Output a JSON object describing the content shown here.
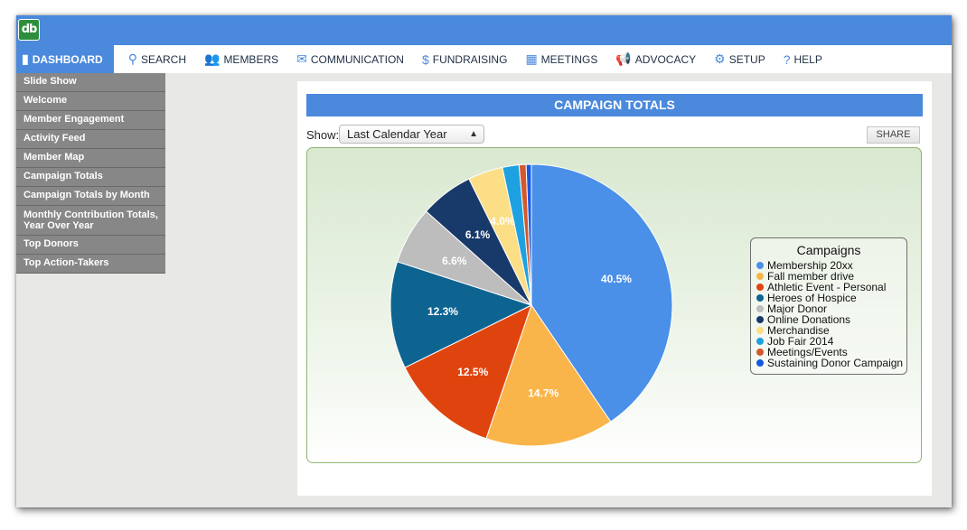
{
  "app": {
    "logo_text": "db"
  },
  "nav": [
    {
      "label": "DASHBOARD",
      "icon": "bar-chart-icon",
      "glyph": "▮",
      "active": true
    },
    {
      "label": "SEARCH",
      "icon": "search-icon",
      "glyph": "⚲",
      "active": false
    },
    {
      "label": "MEMBERS",
      "icon": "members-icon",
      "glyph": "👥",
      "active": false
    },
    {
      "label": "COMMUNICATION",
      "icon": "envelope-icon",
      "glyph": "✉",
      "active": false
    },
    {
      "label": "FUNDRAISING",
      "icon": "dollar-icon",
      "glyph": "$",
      "active": false
    },
    {
      "label": "MEETINGS",
      "icon": "calendar-icon",
      "glyph": "▦",
      "active": false
    },
    {
      "label": "ADVOCACY",
      "icon": "megaphone-icon",
      "glyph": "📢",
      "active": false
    },
    {
      "label": "SETUP",
      "icon": "gear-icon",
      "glyph": "⚙",
      "active": false
    },
    {
      "label": "HELP",
      "icon": "help-icon",
      "glyph": "?",
      "active": false
    }
  ],
  "sidebar": {
    "items": [
      {
        "label": "Slide Show"
      },
      {
        "label": "Welcome"
      },
      {
        "label": "Member Engagement"
      },
      {
        "label": "Activity Feed"
      },
      {
        "label": "Member Map"
      },
      {
        "label": "Campaign Totals"
      },
      {
        "label": "Campaign Totals by Month"
      },
      {
        "label": "Monthly Contribution Totals, Year Over Year",
        "tall": true
      },
      {
        "label": "Top Donors"
      },
      {
        "label": "Top Action-Takers"
      }
    ]
  },
  "main": {
    "title": "CAMPAIGN TOTALS",
    "show_label": "Show:",
    "show_value": "Last Calendar Year",
    "share_label": "SHARE"
  },
  "chart_data": {
    "type": "pie",
    "title": "",
    "legend_title": "Campaigns",
    "legend_position": "right",
    "slices": [
      {
        "name": "Membership 20xx",
        "value": 40.5,
        "label": "40.5%",
        "color": "#4a8fe8"
      },
      {
        "name": "Fall member drive",
        "value": 14.7,
        "label": "14.7%",
        "color": "#f9b54a"
      },
      {
        "name": "Athletic Event - Personal",
        "value": 12.5,
        "label": "12.5%",
        "color": "#e0440e"
      },
      {
        "name": "Heroes of Hospice",
        "value": 12.3,
        "label": "12.3%",
        "color": "#0e6491"
      },
      {
        "name": "Major Donor",
        "value": 6.6,
        "label": "6.6%",
        "color": "#bdbdbd"
      },
      {
        "name": "Online Donations",
        "value": 6.1,
        "label": "6.1%",
        "color": "#183a6b"
      },
      {
        "name": "Merchandise",
        "value": 4.0,
        "label": "4.0%",
        "color": "#fbde86"
      },
      {
        "name": "Job Fair 2014",
        "value": 1.9,
        "label": "",
        "color": "#1ea1e0"
      },
      {
        "name": "Meetings/Events",
        "value": 0.8,
        "label": "",
        "color": "#d3592c"
      },
      {
        "name": "Sustaining Donor Campaign",
        "value": 0.6,
        "label": "",
        "color": "#1559e0"
      }
    ]
  }
}
